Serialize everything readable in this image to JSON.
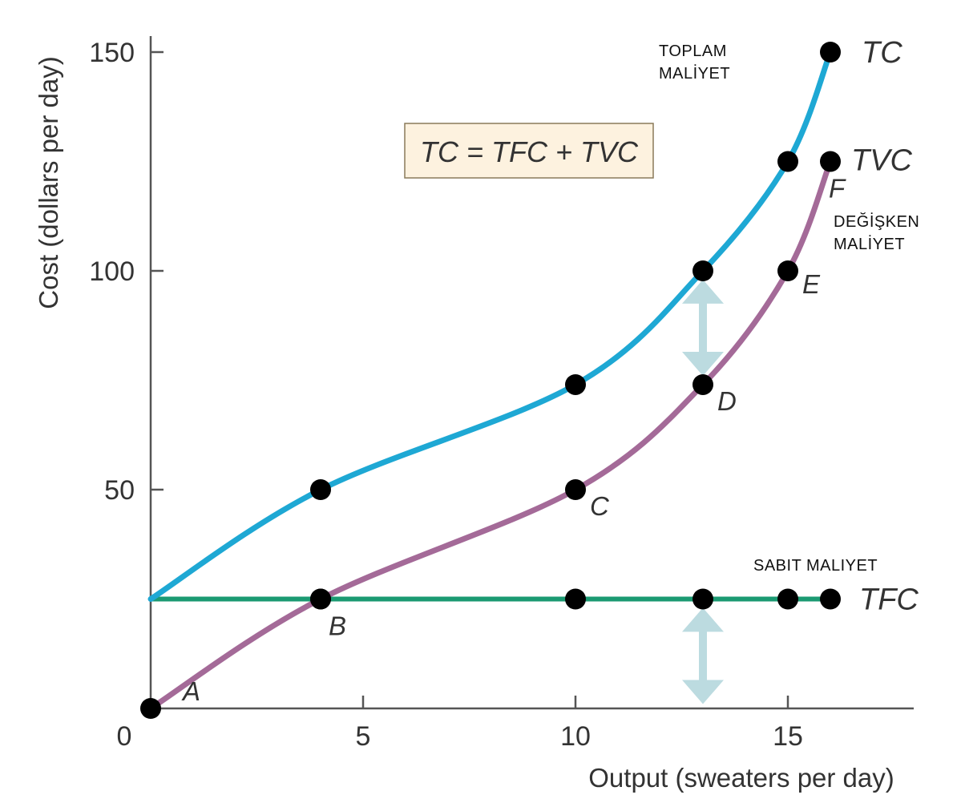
{
  "chart_data": {
    "type": "line",
    "xlabel": "Output (sweaters per day)",
    "ylabel": "Cost (dollars per day)",
    "xlim": [
      0,
      18
    ],
    "ylim": [
      0,
      150
    ],
    "x_ticks": [
      0,
      5,
      10,
      15
    ],
    "y_ticks": [
      50,
      100,
      150
    ],
    "equation": "TC = TFC + TVC",
    "series": [
      {
        "name": "TC",
        "color": "#1ea8d4",
        "x": [
          0,
          4,
          10,
          13,
          15,
          16
        ],
        "y": [
          25,
          50,
          74,
          100,
          125,
          150
        ]
      },
      {
        "name": "TVC",
        "color": "#a46a98",
        "x": [
          0,
          4,
          10,
          13,
          15,
          16
        ],
        "y": [
          0,
          25,
          50,
          74,
          100,
          125
        ],
        "point_labels": [
          "A",
          "B",
          "C",
          "D",
          "E",
          "F"
        ]
      },
      {
        "name": "TFC",
        "color": "#1b9a72",
        "x": [
          0,
          4,
          10,
          13,
          15,
          16
        ],
        "y": [
          25,
          25,
          25,
          25,
          25,
          25
        ]
      }
    ],
    "annotations": {
      "tc": "TOPLAM\nMALİYET",
      "tvc": "DEĞİŞKEN\nMALİYET",
      "tfc": "SABIT MALIYET"
    },
    "arrow_color": "#bcdbe0",
    "marker_color": "#000000"
  }
}
